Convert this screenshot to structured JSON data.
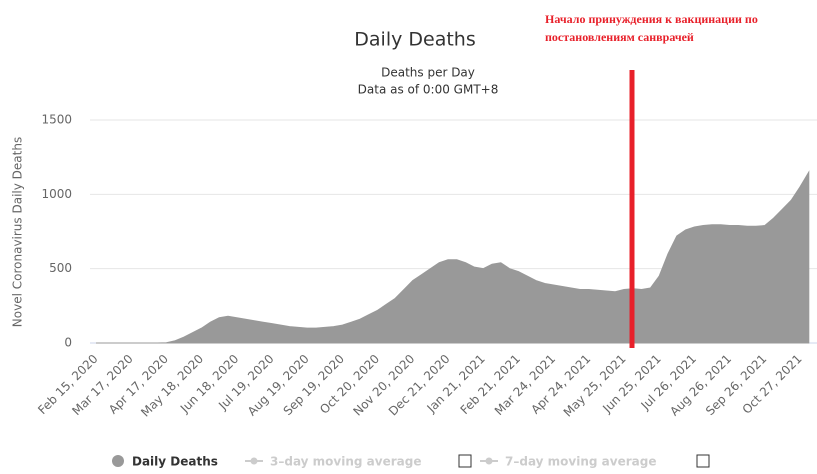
{
  "chart_data": {
    "type": "area",
    "title": "Daily Deaths",
    "subtitle": "Deaths per Day",
    "subtitle2": "Data as of 0:00 GMT+8",
    "y_axis_label": "Novel Coronavirus Daily Deaths",
    "annotation": [
      "Начало принуждения к вакцинации по",
      "постановлениям санврачей"
    ],
    "categories": [
      "Feb 15, 2020",
      null,
      null,
      null,
      "Mar 17, 2020",
      null,
      null,
      null,
      "Apr 17, 2020",
      null,
      null,
      null,
      "May 18, 2020",
      null,
      null,
      null,
      "Jun 18, 2020",
      null,
      null,
      null,
      "Jul 19, 2020",
      null,
      null,
      null,
      "Aug 19, 2020",
      null,
      null,
      null,
      "Sep 19, 2020",
      null,
      null,
      null,
      "Oct 20, 2020",
      null,
      null,
      null,
      "Nov 20, 2020",
      null,
      null,
      null,
      "Dec 21, 2020",
      null,
      null,
      null,
      "Jan 21, 2021",
      null,
      null,
      null,
      "Feb 21, 2021",
      null,
      null,
      null,
      "Mar 24, 2021",
      null,
      null,
      null,
      "Apr 24, 2021",
      null,
      null,
      null,
      "May 25, 2021",
      null,
      null,
      null,
      "Jun 25, 2021",
      null,
      null,
      null,
      "Jul 26, 2021",
      null,
      null,
      null,
      "Aug 26, 2021",
      null,
      null,
      null,
      "Sep 26, 2021",
      null,
      null,
      null,
      "Oct 27, 2021",
      null
    ],
    "series": [
      {
        "name": "Daily Deaths",
        "color": "#999999",
        "values": [
          0,
          0,
          0,
          0,
          0,
          0,
          0,
          0,
          2,
          15,
          40,
          70,
          100,
          140,
          170,
          180,
          170,
          160,
          150,
          140,
          130,
          120,
          110,
          105,
          100,
          100,
          105,
          110,
          120,
          140,
          160,
          190,
          220,
          260,
          300,
          360,
          420,
          460,
          500,
          540,
          560,
          560,
          540,
          510,
          500,
          530,
          540,
          500,
          480,
          450,
          420,
          400,
          390,
          380,
          370,
          360,
          360,
          355,
          350,
          345,
          360,
          365,
          360,
          370,
          450,
          600,
          720,
          760,
          780,
          790,
          795,
          795,
          790,
          790,
          785,
          785,
          790,
          840,
          900,
          960,
          1050,
          1150
        ]
      }
    ],
    "legend_extra": [
      "3–day moving average",
      "7–day moving average"
    ],
    "ylim": [
      0,
      1500
    ],
    "yticks": [
      0,
      500,
      1000,
      1500
    ],
    "grid": true
  }
}
